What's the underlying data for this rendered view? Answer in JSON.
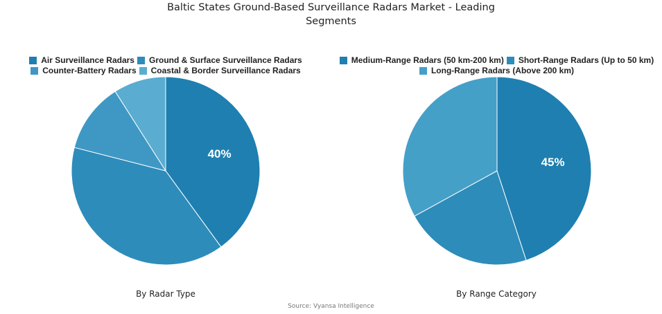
{
  "header": {
    "title_line1": "Baltic States Ground-Based Surveillance Radars Market - Leading",
    "title_line2": "Segments"
  },
  "left": {
    "subtitle": "By Radar Type",
    "legend": [
      {
        "label": "Air Surveillance Radars",
        "color": "#1f7fb0"
      },
      {
        "label": "Ground & Surface Surveillance Radars",
        "color": "#2e8cba"
      },
      {
        "label": "Counter-Battery Radars",
        "color": "#3f98c4"
      },
      {
        "label": "Coastal & Border Surveillance Radars",
        "color": "#5aadd0"
      }
    ],
    "label_text": "40%"
  },
  "right": {
    "subtitle": "By Range Category",
    "legend": [
      {
        "label": "Medium-Range Radars (50 km-200 km)",
        "color": "#1f7fb0"
      },
      {
        "label": "Short-Range Radars (Up to 50 km)",
        "color": "#2e8cba"
      },
      {
        "label": "Long-Range Radars (Above 200 km)",
        "color": "#45a0c8"
      }
    ],
    "label_text": "45%"
  },
  "footer": {
    "source": "Source: Vyansa Intelligence"
  },
  "chart_data": [
    {
      "type": "pie",
      "title": "Baltic States Ground-Based Surveillance Radars Market - Leading Segments",
      "subtitle": "By Radar Type",
      "categories": [
        "Air Surveillance Radars",
        "Ground & Surface Surveillance Radars",
        "Counter-Battery Radars",
        "Coastal & Border Surveillance Radars"
      ],
      "values": [
        40,
        39,
        12,
        9
      ],
      "colors": [
        "#1f7fb0",
        "#2e8cba",
        "#3f98c4",
        "#5aadd0"
      ],
      "data_labels": [
        "40%",
        "",
        "",
        ""
      ],
      "legend_position": "top",
      "start_angle": "12 o'clock, clockwise"
    },
    {
      "type": "pie",
      "title": "Baltic States Ground-Based Surveillance Radars Market - Leading Segments",
      "subtitle": "By Range Category",
      "categories": [
        "Medium-Range Radars (50 km-200 km)",
        "Short-Range Radars (Up to 50 km)",
        "Long-Range Radars (Above 200 km)"
      ],
      "values": [
        45,
        22,
        33
      ],
      "colors": [
        "#1f7fb0",
        "#2e8cba",
        "#45a0c8"
      ],
      "data_labels": [
        "45%",
        "",
        ""
      ],
      "legend_position": "top",
      "start_angle": "12 o'clock, clockwise"
    }
  ]
}
